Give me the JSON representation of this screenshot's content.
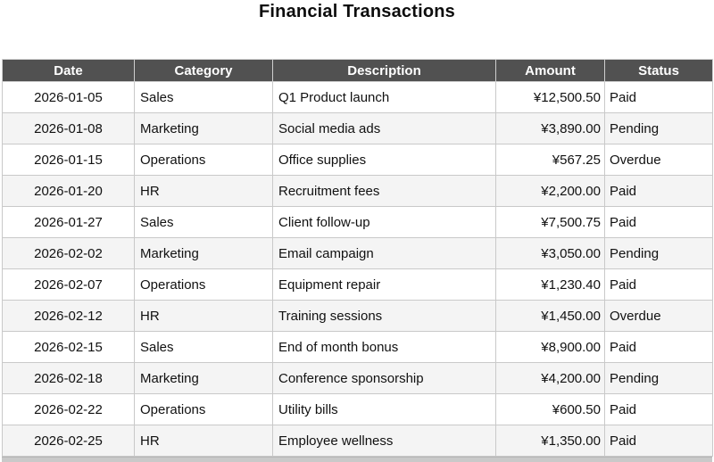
{
  "page": {
    "title": "Financial Transactions"
  },
  "chart_data": {
    "type": "table",
    "title": "Financial Transactions",
    "columns": [
      {
        "key": "date",
        "label": "Date",
        "align": "center"
      },
      {
        "key": "category",
        "label": "Category",
        "align": "left"
      },
      {
        "key": "description",
        "label": "Description",
        "align": "left"
      },
      {
        "key": "amount",
        "label": "Amount",
        "align": "right"
      },
      {
        "key": "status",
        "label": "Status",
        "align": "left"
      }
    ],
    "rows": [
      {
        "date": "2026-01-05",
        "category": "Sales",
        "description": "Q1 Product launch",
        "amount": "¥12,500.50",
        "status": "Paid"
      },
      {
        "date": "2026-01-08",
        "category": "Marketing",
        "description": "Social media ads",
        "amount": "¥3,890.00",
        "status": "Pending"
      },
      {
        "date": "2026-01-15",
        "category": "Operations",
        "description": "Office supplies",
        "amount": "¥567.25",
        "status": "Overdue"
      },
      {
        "date": "2026-01-20",
        "category": "HR",
        "description": "Recruitment fees",
        "amount": "¥2,200.00",
        "status": "Paid"
      },
      {
        "date": "2026-01-27",
        "category": "Sales",
        "description": "Client follow-up",
        "amount": "¥7,500.75",
        "status": "Paid"
      },
      {
        "date": "2026-02-02",
        "category": "Marketing",
        "description": "Email campaign",
        "amount": "¥3,050.00",
        "status": "Pending"
      },
      {
        "date": "2026-02-07",
        "category": "Operations",
        "description": "Equipment repair",
        "amount": "¥1,230.40",
        "status": "Paid"
      },
      {
        "date": "2026-02-12",
        "category": "HR",
        "description": "Training sessions",
        "amount": "¥1,450.00",
        "status": "Overdue"
      },
      {
        "date": "2026-02-15",
        "category": "Sales",
        "description": "End of month bonus",
        "amount": "¥8,900.00",
        "status": "Paid"
      },
      {
        "date": "2026-02-18",
        "category": "Marketing",
        "description": "Conference sponsorship",
        "amount": "¥4,200.00",
        "status": "Pending"
      },
      {
        "date": "2026-02-22",
        "category": "Operations",
        "description": "Utility bills",
        "amount": "¥600.50",
        "status": "Paid"
      },
      {
        "date": "2026-02-25",
        "category": "HR",
        "description": "Employee wellness",
        "amount": "¥1,350.00",
        "status": "Paid"
      }
    ],
    "layout": {
      "legend": "none",
      "grid": "table-borders",
      "header_bg": "#515151",
      "header_text_color": "#ffffff",
      "row_bg": "#ffffff",
      "row_alt_bg": "#f4f4f4",
      "border_color": "#c9c9c9",
      "title_color": "#0d0d0d",
      "column_align": [
        "center",
        "left",
        "left",
        "right",
        "left"
      ]
    }
  }
}
